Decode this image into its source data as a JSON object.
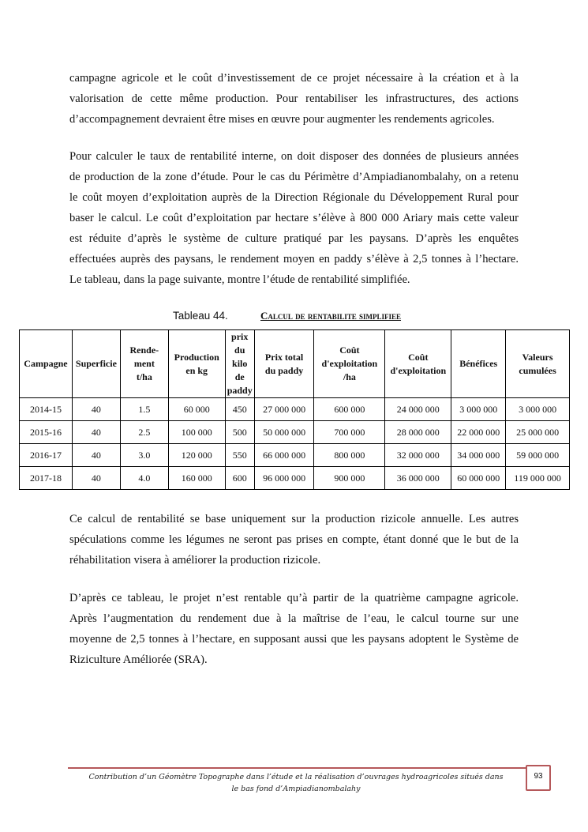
{
  "paragraphs": [
    [
      "campagne agricole et le coût d’investissement de ce projet nécessaire à la création et à la",
      "valorisation de cette même production. Pour rentabiliser les infrastructures, des actions",
      "d’accompagnement devraient être mises en œuvre pour augmenter les rendements agricoles."
    ],
    [
      "Pour calculer le taux de rentabilité interne, on doit disposer des données de plusieurs années",
      "de production de la zone d’étude. Pour le cas du Périmètre d’Ampiadianombalahy, on a retenu",
      "le coût moyen d’exploitation auprès de la Direction Régionale du Développement Rural pour",
      "baser le calcul. Le coût d’exploitation par hectare s’élève à 800 000 Ariary mais cette valeur",
      "est réduite d’après le système de culture pratiqué par les paysans. D’après les enquêtes",
      "effectuées auprès des paysans, le rendement moyen en paddy s’élève à 2,5 tonnes à l’hectare.",
      "Le tableau, dans la page suivante, montre l’étude de rentabilité simplifiée."
    ],
    [
      "Ce calcul de rentabilité se base uniquement sur la production rizicole annuelle. Les autres",
      "spéculations comme les légumes ne seront pas prises en compte, étant donné que le but de la",
      "réhabilitation visera à améliorer la production rizicole."
    ],
    [
      "D’après ce tableau, le projet n’est rentable qu’à partir de la quatrième campagne agricole.",
      "Après l’augmentation du rendement due à la maîtrise de l’eau, le calcul tourne sur une",
      "moyenne de 2,5 tonnes à l’hectare, en supposant aussi que les paysans adoptent le Système de",
      "Riziculture Améliorée (SRA)."
    ]
  ],
  "table": {
    "caption_number": "Tableau 44.",
    "caption_title": "Calcul de rentabilite simplifiee",
    "headers": [
      "Campagne",
      "Superficie",
      "Rende-\nment\nt/ha",
      "Production\nen kg",
      "prix\ndu\nkilo\nde\npaddy",
      "Prix total\ndu paddy",
      "Coût\nd'exploitation\n/ha",
      "Coût\nd'exploitation",
      "Bénéfices",
      "Valeurs\ncumulées"
    ],
    "rows": [
      [
        "2014-15",
        "40",
        "1.5",
        "60 000",
        "450",
        "27 000 000",
        "600 000",
        "24 000 000",
        "3 000 000",
        "3 000 000"
      ],
      [
        "2015-16",
        "40",
        "2.5",
        "100 000",
        "500",
        "50 000 000",
        "700 000",
        "28 000 000",
        "22 000 000",
        "25 000 000"
      ],
      [
        "2016-17",
        "40",
        "3.0",
        "120 000",
        "550",
        "66 000 000",
        "800 000",
        "32 000 000",
        "34 000 000",
        "59 000 000"
      ],
      [
        "2017-18",
        "40",
        "4.0",
        "160 000",
        "600",
        "96 000 000",
        "900 000",
        "36 000 000",
        "60 000 000",
        "119 000 000"
      ]
    ]
  },
  "footer": {
    "text": "Contribution d’un Géomètre Topographe dans l’étude et la réalisation d’ouvrages hydroagricoles situés dans le bas fond d’Ampiadianombalahy",
    "page_number": "93",
    "accent_color": "#b5585a"
  }
}
